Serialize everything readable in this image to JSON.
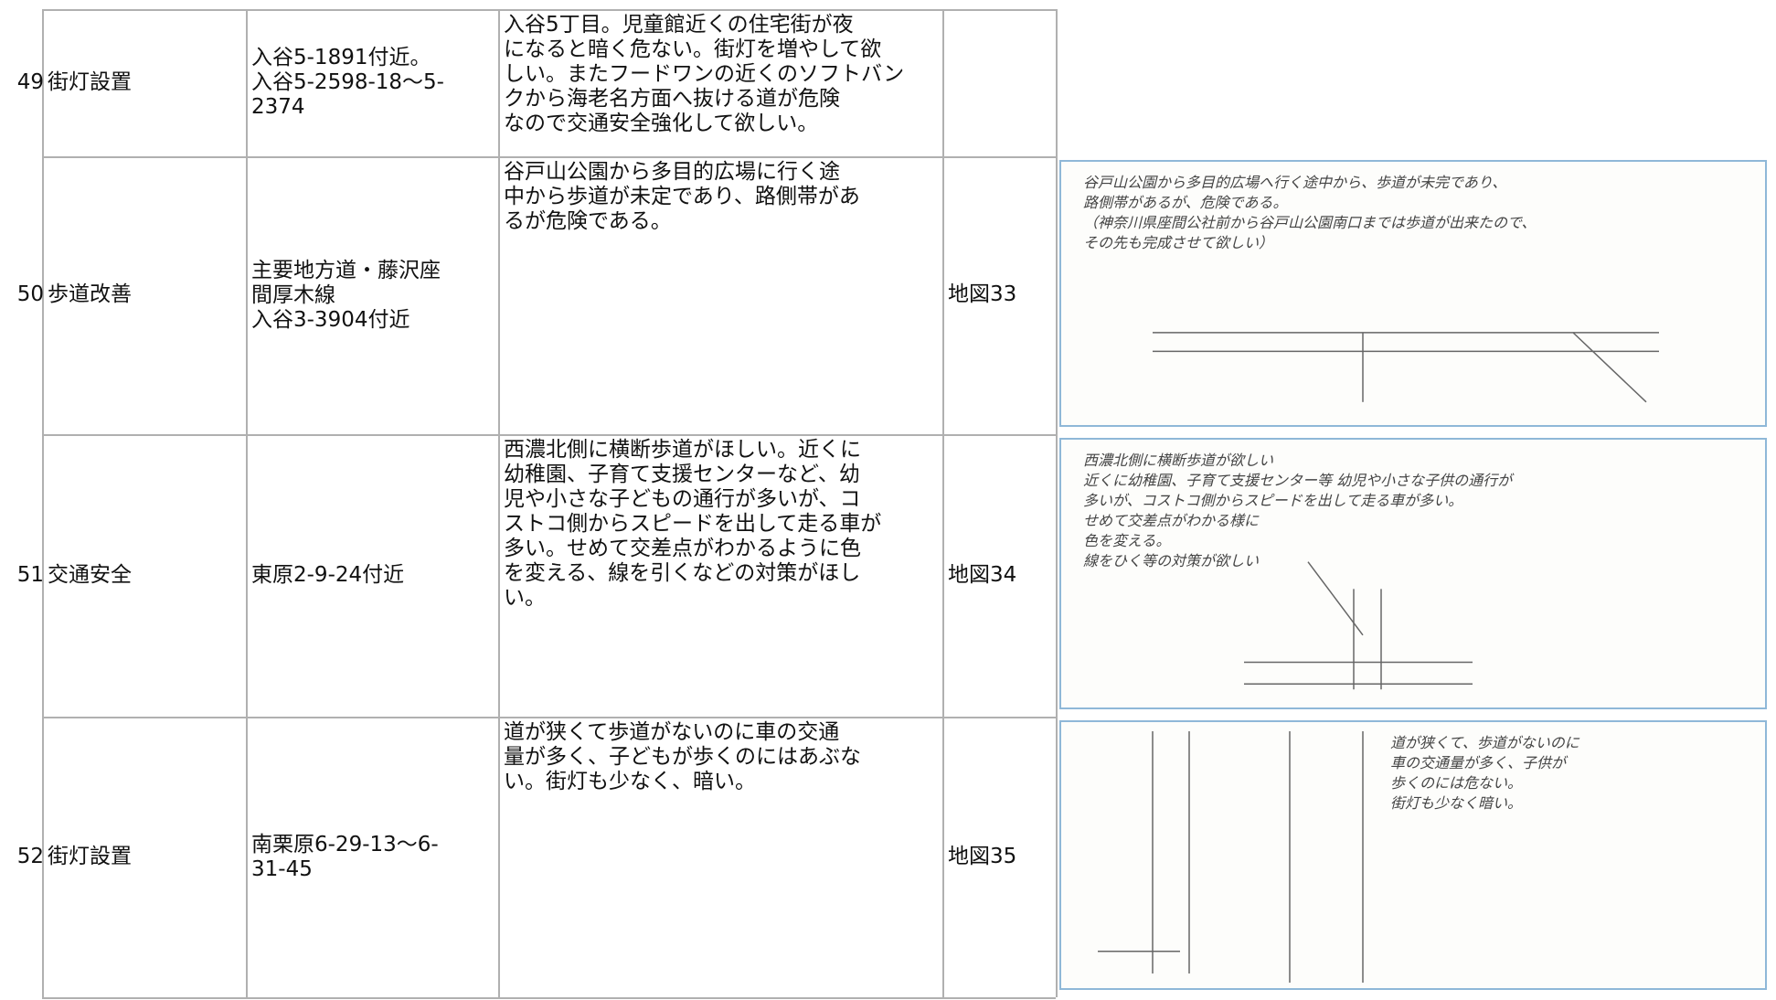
{
  "table": {
    "rows": [
      {
        "no": "49",
        "category": "街灯設置",
        "location": [
          "入谷5-1891付近。",
          "入谷5-2598-18～5-",
          "2374"
        ],
        "description": [
          "入谷5丁目。児童館近くの住宅街が夜",
          "になると暗く危ない。街灯を増やして欲",
          "しい。またフードワンの近くのソフトバン",
          "クから海老名方面へ抜ける道が危険",
          "なので交通安全強化して欲しい。"
        ]
      },
      {
        "no": "50",
        "category": "歩道改善",
        "location": [
          "主要地方道・藤沢座",
          "間厚木線",
          "入谷3-3904付近"
        ],
        "description": [
          "谷戸山公園から多目的広場に行く途",
          "中から歩道が未定であり、路側帯があ",
          "るが危険である。"
        ],
        "map": "地図33",
        "sketch": [
          "谷戸山公園から多目的広場へ行く途中から、歩道が未完であり、",
          "路側帯があるが、危険である。",
          "（神奈川県座間公社前から谷戸山公園南口までは歩道が出来たので、",
          "その先も完成させて欲しい）"
        ]
      },
      {
        "no": "51",
        "category": "交通安全",
        "location": [
          "東原2-9-24付近"
        ],
        "description": [
          "西濃北側に横断歩道がほしい。近くに",
          "幼稚園、子育て支援センターなど、幼",
          "児や小さな子どもの通行が多いが、コ",
          "ストコ側からスピードを出して走る車が",
          "多い。せめて交差点がわかるように色",
          "を変える、線を引くなどの対策がほし",
          "い。"
        ],
        "map": "地図34",
        "sketch": [
          "西濃北側に横断歩道が欲しい",
          "近くに幼稚園、子育て支援センター等 幼児や小さな子供の通行が",
          "多いが、コストコ側からスピードを出して走る車が多い。",
          "せめて交差点がわかる様に",
          "色を変える。",
          "線をひく等の対策が欲しい"
        ]
      },
      {
        "no": "52",
        "category": "街灯設置",
        "location": [
          "南栗原6-29-13～6-",
          "31-45"
        ],
        "description": [
          "道が狭くて歩道がないのに車の交通",
          "量が多く、子どもが歩くのにはあぶな",
          "い。街灯も少なく、暗い。"
        ],
        "map": "地図35",
        "sketch": [
          "道が狭くて、歩道がないのに",
          "車の交通量が多く、子供が",
          "歩くのには危ない。",
          "街灯も少なく暗い。"
        ]
      }
    ]
  }
}
